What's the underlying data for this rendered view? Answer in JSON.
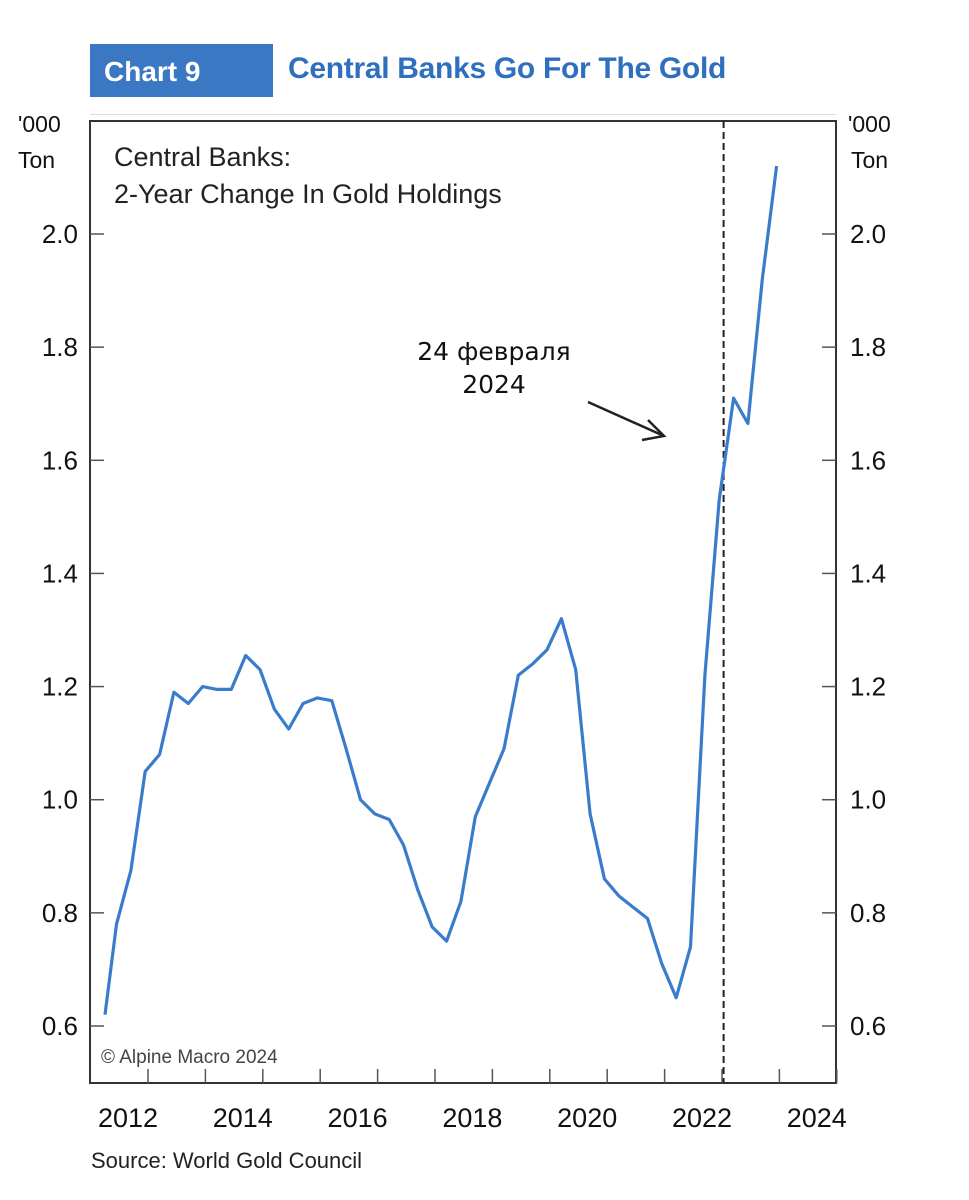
{
  "header": {
    "chart_number": "Chart 9",
    "title": "Central Banks Go For The Gold"
  },
  "chart_data": {
    "type": "line",
    "title": "Central Banks: 2-Year Change In Gold Holdings",
    "title_lines": [
      "Central Banks:",
      "2-Year Change In Gold Holdings"
    ],
    "ylabel_left": [
      "'000",
      "Ton"
    ],
    "ylabel_right": [
      "'000",
      "Ton"
    ],
    "ylim": [
      0.49,
      2.2
    ],
    "yticks": [
      0.6,
      0.8,
      1.0,
      1.2,
      1.4,
      1.6,
      1.8,
      2.0
    ],
    "ytick_labels": [
      "0.6",
      "0.8",
      "1.0",
      "1.2",
      "1.4",
      "1.6",
      "1.8",
      "2.0"
    ],
    "xlim": [
      2011.45,
      2024.45
    ],
    "xtick_labels": [
      "2012",
      "2014",
      "2016",
      "2018",
      "2020",
      "2022",
      "2024"
    ],
    "xtick_values": [
      2012,
      2014,
      2016,
      2018,
      2020,
      2022,
      2024
    ],
    "grid": false,
    "series": [
      {
        "name": "Central Banks: 2-Year Change In Gold Holdings",
        "color": "#3a7ccc",
        "x": [
          2011.6,
          2011.8,
          2012.05,
          2012.3,
          2012.55,
          2012.8,
          2013.05,
          2013.3,
          2013.55,
          2013.8,
          2014.05,
          2014.3,
          2014.55,
          2014.8,
          2015.05,
          2015.3,
          2015.55,
          2015.8,
          2016.05,
          2016.3,
          2016.55,
          2016.8,
          2017.05,
          2017.3,
          2017.55,
          2017.8,
          2018.05,
          2018.3,
          2018.55,
          2018.8,
          2019.05,
          2019.3,
          2019.55,
          2019.8,
          2020.05,
          2020.3,
          2020.55,
          2020.8,
          2021.05,
          2021.3,
          2021.55,
          2021.8,
          2022.05,
          2022.3,
          2022.55,
          2022.8,
          2023.05,
          2023.3
        ],
        "values": [
          0.62,
          0.78,
          0.875,
          1.05,
          1.08,
          1.19,
          1.17,
          1.2,
          1.195,
          1.195,
          1.255,
          1.23,
          1.16,
          1.125,
          1.17,
          1.18,
          1.175,
          1.09,
          1.0,
          0.975,
          0.965,
          0.92,
          0.84,
          0.775,
          0.75,
          0.82,
          0.97,
          1.03,
          1.09,
          1.22,
          1.24,
          1.265,
          1.32,
          1.23,
          0.975,
          0.86,
          0.83,
          0.81,
          0.79,
          0.71,
          0.65,
          0.74,
          1.22,
          1.53,
          1.71,
          1.665,
          1.92,
          2.12
        ]
      }
    ],
    "annotations": {
      "event_label_line1": "24 февраля",
      "event_label_line2": "2024",
      "event_x": 2022.15,
      "copyright": "© Alpine Macro 2024"
    },
    "legend": "none"
  },
  "footer": {
    "source": "Source: World Gold Council"
  }
}
